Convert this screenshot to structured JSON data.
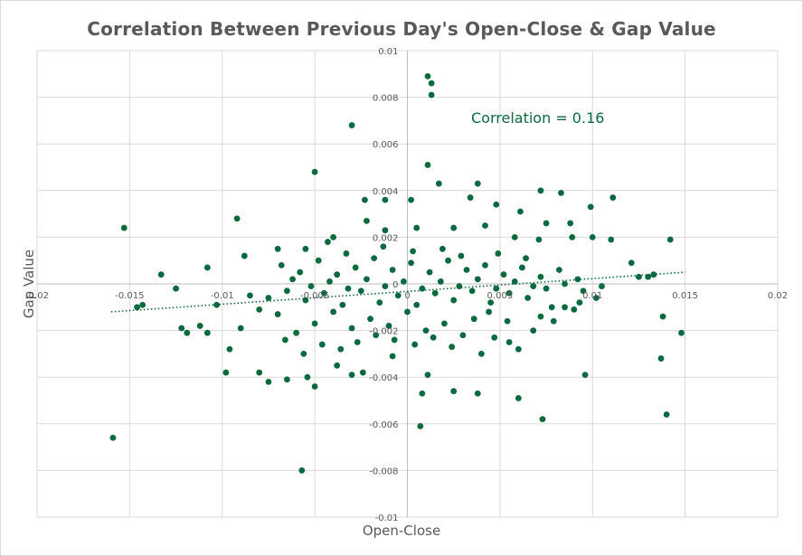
{
  "chart_data": {
    "type": "scatter",
    "title": "Correlation Between Previous  Day's Open-Close & Gap Value",
    "xlabel": "Open-Close",
    "ylabel": "Gap Value",
    "xlim": [
      -0.02,
      0.02
    ],
    "ylim": [
      -0.01,
      0.01
    ],
    "x_ticks": [
      "-0.02",
      "-0.015",
      "-0.01",
      "-0.005",
      "0",
      "0.005",
      "0.01",
      "0.015",
      "0.02"
    ],
    "y_ticks": [
      "0.01",
      "0.008",
      "0.006",
      "0.004",
      "0.002",
      "0",
      "-0.002",
      "-0.004",
      "-0.006",
      "-0.008",
      "-0.01"
    ],
    "grid": true,
    "marker_color": "#0a6a3e",
    "annotation": "Correlation = 0.16",
    "trendline": {
      "type": "linear",
      "style": "dotted",
      "x": [
        -0.016,
        0.015
      ],
      "y": [
        -0.0012,
        0.0005
      ]
    },
    "points": [
      [
        0.0011,
        0.0089
      ],
      [
        0.0013,
        0.0086
      ],
      [
        0.0013,
        0.0081
      ],
      [
        -0.003,
        0.0068
      ],
      [
        -0.005,
        0.0048
      ],
      [
        0.0011,
        0.0051
      ],
      [
        0.0017,
        0.0043
      ],
      [
        0.0038,
        0.0043
      ],
      [
        0.0072,
        0.004
      ],
      [
        0.0083,
        0.0039
      ],
      [
        0.0111,
        0.0037
      ],
      [
        -0.0153,
        0.0024
      ],
      [
        -0.0092,
        0.0028
      ],
      [
        -0.0023,
        0.0036
      ],
      [
        -0.0012,
        0.0036
      ],
      [
        0.0002,
        0.0036
      ],
      [
        0.0034,
        0.0037
      ],
      [
        0.0048,
        0.0034
      ],
      [
        0.0061,
        0.0031
      ],
      [
        0.0075,
        0.0026
      ],
      [
        0.0088,
        0.0026
      ],
      [
        0.0099,
        0.0033
      ],
      [
        0.011,
        0.0019
      ],
      [
        0.0142,
        0.0019
      ],
      [
        -0.0133,
        0.0004
      ],
      [
        -0.0125,
        -0.0002
      ],
      [
        -0.0108,
        0.0007
      ],
      [
        -0.0088,
        0.0012
      ],
      [
        -0.007,
        0.0015
      ],
      [
        -0.0055,
        0.0015
      ],
      [
        -0.004,
        0.002
      ],
      [
        -0.0022,
        0.0027
      ],
      [
        -0.0012,
        0.0023
      ],
      [
        0.0005,
        0.0024
      ],
      [
        0.0025,
        0.0024
      ],
      [
        0.0042,
        0.0025
      ],
      [
        0.0058,
        0.002
      ],
      [
        0.0071,
        0.0019
      ],
      [
        0.0089,
        0.002
      ],
      [
        0.01,
        0.002
      ],
      [
        0.0121,
        0.0009
      ],
      [
        0.0133,
        0.0004
      ],
      [
        -0.0146,
        -0.001
      ],
      [
        -0.0143,
        -0.0009
      ],
      [
        -0.0122,
        -0.0019
      ],
      [
        -0.0119,
        -0.0021
      ],
      [
        -0.0112,
        -0.0018
      ],
      [
        -0.0108,
        -0.0021
      ],
      [
        -0.0103,
        -0.0009
      ],
      [
        -0.0098,
        -0.0038
      ],
      [
        -0.0096,
        -0.0028
      ],
      [
        -0.009,
        -0.0019
      ],
      [
        -0.008,
        -0.0038
      ],
      [
        -0.0075,
        -0.0042
      ],
      [
        -0.0065,
        -0.0041
      ],
      [
        -0.005,
        -0.0044
      ],
      [
        -0.0054,
        -0.004
      ],
      [
        -0.0038,
        -0.0035
      ],
      [
        -0.003,
        -0.0039
      ],
      [
        -0.0024,
        -0.0038
      ],
      [
        -0.0057,
        -0.008
      ],
      [
        -0.0159,
        -0.0066
      ],
      [
        -0.0008,
        -0.0031
      ],
      [
        0.0008,
        -0.0047
      ],
      [
        0.0011,
        -0.0039
      ],
      [
        0.0025,
        -0.0046
      ],
      [
        0.0038,
        -0.0047
      ],
      [
        0.006,
        -0.0049
      ],
      [
        0.0073,
        -0.0058
      ],
      [
        0.0007,
        -0.0061
      ],
      [
        0.0096,
        -0.0039
      ],
      [
        0.0137,
        -0.0032
      ],
      [
        0.014,
        -0.0056
      ],
      [
        0.0148,
        -0.0021
      ],
      [
        0.0138,
        -0.0014
      ],
      [
        0.013,
        0.0003
      ],
      [
        0.0125,
        0.0003
      ],
      [
        0.0102,
        -0.0006
      ],
      [
        0.009,
        -0.0011
      ],
      [
        0.0085,
        -0.001
      ],
      [
        0.0079,
        -0.0016
      ],
      [
        0.0072,
        -0.0014
      ],
      [
        0.0068,
        -0.002
      ],
      [
        0.006,
        -0.0028
      ],
      [
        0.0055,
        -0.0025
      ],
      [
        0.0047,
        -0.0023
      ],
      [
        0.004,
        -0.003
      ],
      [
        0.003,
        -0.0022
      ],
      [
        0.002,
        -0.0017
      ],
      [
        0.001,
        -0.002
      ],
      [
        0.0,
        -0.0012
      ],
      [
        -0.001,
        -0.0018
      ],
      [
        -0.002,
        -0.0015
      ],
      [
        -0.003,
        -0.0019
      ],
      [
        -0.004,
        -0.0012
      ],
      [
        -0.005,
        -0.0017
      ],
      [
        -0.006,
        -0.0021
      ],
      [
        -0.007,
        -0.0013
      ],
      [
        -0.008,
        -0.0011
      ],
      [
        -0.0085,
        -0.0005
      ],
      [
        -0.0075,
        -0.0006
      ],
      [
        -0.0065,
        -0.0003
      ],
      [
        -0.0055,
        -0.0007
      ],
      [
        -0.0045,
        -0.0004
      ],
      [
        -0.0035,
        -0.0009
      ],
      [
        -0.0025,
        -0.0003
      ],
      [
        -0.0015,
        -0.0008
      ],
      [
        -0.0005,
        -0.0005
      ],
      [
        0.0005,
        -0.0009
      ],
      [
        0.0015,
        -0.0004
      ],
      [
        0.0025,
        -0.0007
      ],
      [
        0.0035,
        -0.0003
      ],
      [
        0.0045,
        -0.0008
      ],
      [
        0.0055,
        -0.0004
      ],
      [
        0.0065,
        -0.0006
      ],
      [
        0.0075,
        -0.0002
      ],
      [
        0.0085,
        0.0
      ],
      [
        0.0095,
        -0.0003
      ],
      [
        0.0105,
        -0.0001
      ],
      [
        -0.0068,
        0.0008
      ],
      [
        -0.0058,
        0.0005
      ],
      [
        -0.0048,
        0.001
      ],
      [
        -0.0038,
        0.0004
      ],
      [
        -0.0028,
        0.0007
      ],
      [
        -0.0018,
        0.0011
      ],
      [
        -0.0008,
        0.0006
      ],
      [
        0.0002,
        0.0009
      ],
      [
        0.0012,
        0.0005
      ],
      [
        0.0022,
        0.001
      ],
      [
        0.0032,
        0.0006
      ],
      [
        0.0042,
        0.0008
      ],
      [
        0.0052,
        0.0004
      ],
      [
        0.0062,
        0.0007
      ],
      [
        0.0072,
        0.0003
      ],
      [
        0.0082,
        0.0006
      ],
      [
        0.0092,
        0.0002
      ],
      [
        -0.0062,
        0.0002
      ],
      [
        -0.0052,
        -0.0001
      ],
      [
        -0.0042,
        0.0001
      ],
      [
        -0.0032,
        -0.0002
      ],
      [
        -0.0022,
        0.0002
      ],
      [
        -0.0012,
        -0.0001
      ],
      [
        -0.0002,
        0.0001
      ],
      [
        0.0008,
        -0.0002
      ],
      [
        0.0018,
        0.0001
      ],
      [
        0.0028,
        -0.0001
      ],
      [
        0.0038,
        0.0002
      ],
      [
        0.0048,
        -0.0002
      ],
      [
        0.0058,
        0.0001
      ],
      [
        0.0068,
        -0.0001
      ],
      [
        -0.0033,
        0.0013
      ],
      [
        -0.0043,
        0.0018
      ],
      [
        -0.0013,
        0.0016
      ],
      [
        0.0003,
        0.0014
      ],
      [
        0.0019,
        0.0015
      ],
      [
        0.0029,
        0.0012
      ],
      [
        0.0049,
        0.0013
      ],
      [
        0.0064,
        0.0011
      ],
      [
        -0.0027,
        -0.0025
      ],
      [
        -0.0017,
        -0.0022
      ],
      [
        -0.0007,
        -0.0024
      ],
      [
        0.0004,
        -0.0026
      ],
      [
        0.0014,
        -0.0023
      ],
      [
        0.0024,
        -0.0027
      ],
      [
        0.0036,
        -0.0015
      ],
      [
        0.0044,
        -0.0012
      ],
      [
        -0.0046,
        -0.0026
      ],
      [
        -0.0036,
        -0.0028
      ],
      [
        -0.0056,
        -0.003
      ],
      [
        -0.0066,
        -0.0024
      ],
      [
        0.0054,
        -0.0016
      ],
      [
        0.0078,
        -0.001
      ],
      [
        0.0093,
        -0.0008
      ]
    ]
  }
}
